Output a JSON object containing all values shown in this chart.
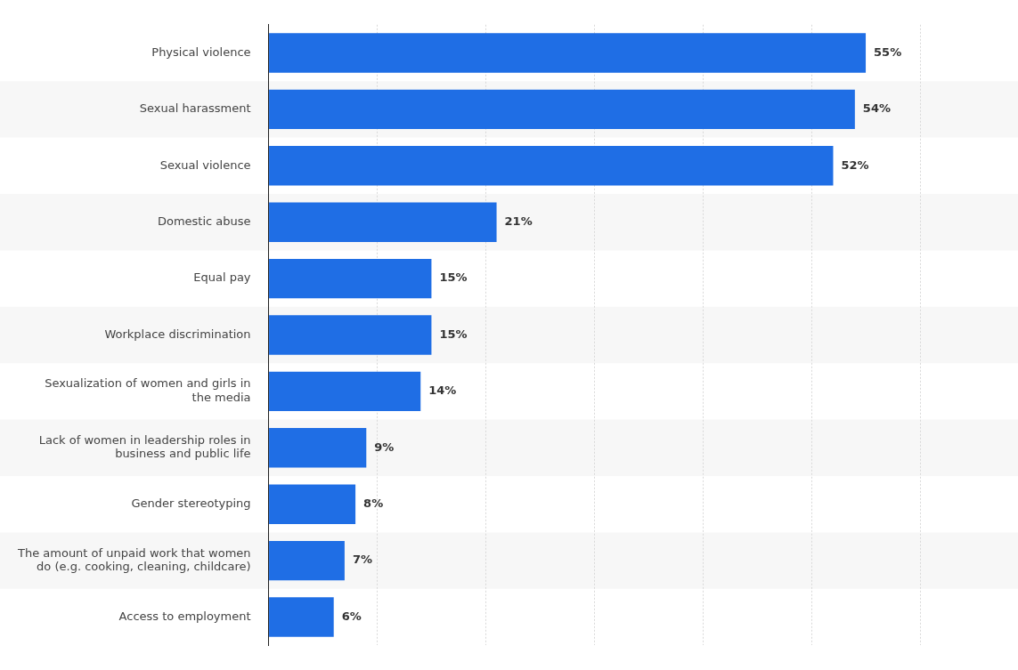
{
  "chart_data": {
    "type": "bar",
    "orientation": "horizontal",
    "categories": [
      "Physical violence",
      "Sexual harassment",
      "Sexual violence",
      "Domestic abuse",
      "Equal pay",
      "Workplace discrimination",
      "Sexualization of women and girls in the media",
      "Lack of women in leadership roles in business and public life",
      "Gender stereotyping",
      "The amount of unpaid work that women do (e.g. cooking, cleaning, childcare)",
      "Access to employment"
    ],
    "values": [
      55,
      54,
      52,
      21,
      15,
      15,
      14,
      9,
      8,
      7,
      6
    ],
    "value_labels": [
      "55%",
      "54%",
      "52%",
      "21%",
      "15%",
      "15%",
      "14%",
      "9%",
      "8%",
      "7%",
      "6%"
    ],
    "color": "#1f6ee5",
    "xticks": [
      {
        "value": 0,
        "label": null
      },
      {
        "value": 10,
        "label": null
      },
      {
        "value": 20,
        "label": null
      },
      {
        "value": 30,
        "label": null
      },
      {
        "value": 40,
        "label": null
      },
      {
        "value": 50,
        "label": null
      },
      {
        "value": 60,
        "label": null
      }
    ],
    "grid": "x",
    "tick_labels": "y",
    "legend": false
  }
}
